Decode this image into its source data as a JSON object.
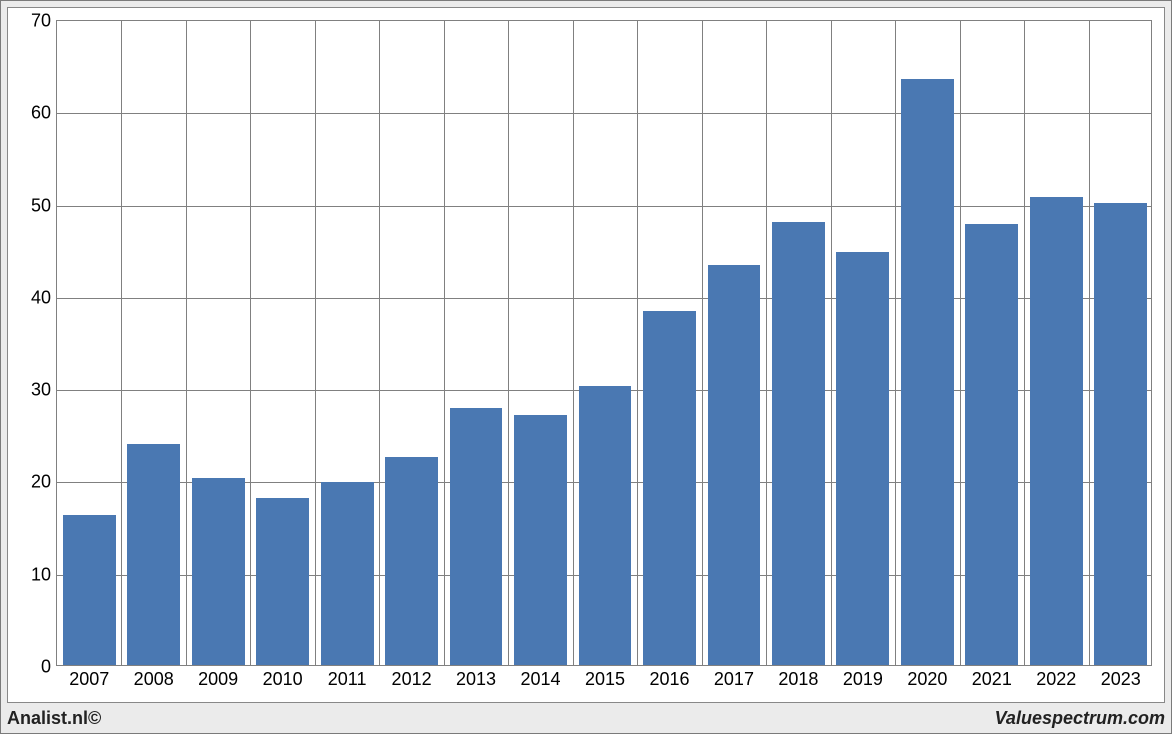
{
  "chart": {
    "type": "bar",
    "categories": [
      "2007",
      "2008",
      "2009",
      "2010",
      "2011",
      "2012",
      "2013",
      "2014",
      "2015",
      "2016",
      "2017",
      "2018",
      "2019",
      "2020",
      "2021",
      "2022",
      "2023"
    ],
    "values": [
      16.3,
      24.0,
      20.3,
      18.1,
      19.8,
      22.5,
      27.8,
      27.1,
      30.2,
      38.4,
      43.3,
      48.0,
      44.8,
      63.5,
      47.8,
      50.7,
      50.1
    ],
    "bar_color": "#4a78b2",
    "background_color": "#ffffff",
    "outer_background_color": "#ebebeb",
    "grid_color": "#808080",
    "border_color": "#888888",
    "ylim": [
      0,
      70
    ],
    "ytick_step": 10,
    "yticks": [
      0,
      10,
      20,
      30,
      40,
      50,
      60,
      70
    ],
    "bar_width_ratio": 0.82,
    "label_fontsize": 18,
    "label_color": "#000000"
  },
  "footer": {
    "left": "Analist.nl©",
    "right": "Valuespectrum.com"
  }
}
